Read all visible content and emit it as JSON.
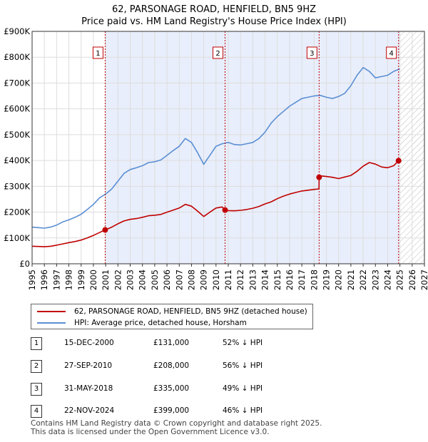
{
  "title_line1": "62, PARSONAGE ROAD, HENFIELD, BN5 9HZ",
  "title_line2": "Price paid vs. HM Land Registry's House Price Index (HPI)",
  "legend": {
    "property": "62, PARSONAGE ROAD, HENFIELD, BN5 9HZ (detached house)",
    "hpi": "HPI: Average price, detached house, Horsham"
  },
  "sales": [
    {
      "num": "1",
      "date": "15-DEC-2000",
      "price": "£131,000",
      "hpi": "52% ↓ HPI"
    },
    {
      "num": "2",
      "date": "27-SEP-2010",
      "price": "£208,000",
      "hpi": "56% ↓ HPI"
    },
    {
      "num": "3",
      "date": "31-MAY-2018",
      "price": "£335,000",
      "hpi": "49% ↓ HPI"
    },
    {
      "num": "4",
      "date": "22-NOV-2024",
      "price": "£399,000",
      "hpi": "46% ↓ HPI"
    }
  ],
  "footer_line1": "Contains HM Land Registry data © Crown copyright and database right 2025.",
  "footer_line2": "This data is licensed under the Open Government Licence v3.0.",
  "colors": {
    "property": "#c00000",
    "hpi": "#5b8fd4",
    "shade": "#e8eefb",
    "marker": "#c00000"
  },
  "chart_data": {
    "type": "line",
    "xlim": [
      1995,
      2027
    ],
    "ylim": [
      0,
      900000
    ],
    "x_ticks": [
      1995,
      1996,
      1997,
      1998,
      1999,
      2000,
      2001,
      2002,
      2003,
      2004,
      2005,
      2006,
      2007,
      2008,
      2009,
      2010,
      2011,
      2012,
      2013,
      2014,
      2015,
      2016,
      2017,
      2018,
      2019,
      2020,
      2021,
      2022,
      2023,
      2024,
      2025,
      2026,
      2027
    ],
    "y_ticks": [
      {
        "value": 0,
        "label": "£0"
      },
      {
        "value": 100000,
        "label": "£100K"
      },
      {
        "value": 200000,
        "label": "£200K"
      },
      {
        "value": 300000,
        "label": "£300K"
      },
      {
        "value": 400000,
        "label": "£400K"
      },
      {
        "value": 500000,
        "label": "£500K"
      },
      {
        "value": 600000,
        "label": "£600K"
      },
      {
        "value": 700000,
        "label": "£700K"
      },
      {
        "value": 800000,
        "label": "£800K"
      },
      {
        "value": 900000,
        "label": "£900K"
      }
    ],
    "shaded_from": 2000.96,
    "hatched_from": 2025.0,
    "sale_markers": [
      {
        "label": "1",
        "x": 2000.96,
        "y": 131000
      },
      {
        "label": "2",
        "x": 2010.74,
        "y": 208000
      },
      {
        "label": "3",
        "x": 2018.41,
        "y": 335000
      },
      {
        "label": "4",
        "x": 2024.89,
        "y": 399000
      }
    ],
    "series": [
      {
        "name": "HPI: Average price, detached house, Horsham",
        "x": [
          1995,
          1995.5,
          1996,
          1996.5,
          1997,
          1997.5,
          1998,
          1998.5,
          1999,
          1999.5,
          2000,
          2000.5,
          2001,
          2001.5,
          2002,
          2002.5,
          2003,
          2003.5,
          2004,
          2004.5,
          2005,
          2005.5,
          2006,
          2006.5,
          2007,
          2007.5,
          2008,
          2008.5,
          2009,
          2009.5,
          2010,
          2010.5,
          2011,
          2011.5,
          2012,
          2012.5,
          2013,
          2013.5,
          2014,
          2014.5,
          2015,
          2015.5,
          2016,
          2016.5,
          2017,
          2017.5,
          2018,
          2018.5,
          2019,
          2019.5,
          2020,
          2020.5,
          2021,
          2021.5,
          2022,
          2022.5,
          2023,
          2023.5,
          2024,
          2024.5,
          2025
        ],
        "values": [
          142000,
          140000,
          138000,
          142000,
          150000,
          162000,
          170000,
          180000,
          192000,
          210000,
          230000,
          255000,
          270000,
          290000,
          320000,
          350000,
          365000,
          372000,
          380000,
          392000,
          395000,
          402000,
          420000,
          438000,
          455000,
          485000,
          470000,
          430000,
          385000,
          420000,
          455000,
          465000,
          470000,
          462000,
          460000,
          465000,
          470000,
          485000,
          510000,
          545000,
          570000,
          590000,
          610000,
          625000,
          640000,
          645000,
          650000,
          652000,
          645000,
          640000,
          648000,
          660000,
          690000,
          730000,
          760000,
          745000,
          720000,
          725000,
          730000,
          745000,
          755000
        ]
      },
      {
        "name": "62, PARSONAGE ROAD, HENFIELD, BN5 9HZ (detached house)",
        "x": [
          1995,
          1995.5,
          1996,
          1996.5,
          1997,
          1997.5,
          1998,
          1998.5,
          1999,
          1999.5,
          2000,
          2000.5,
          2000.96,
          2001.5,
          2002,
          2002.5,
          2003,
          2003.5,
          2004,
          2004.5,
          2005,
          2005.5,
          2006,
          2006.5,
          2007,
          2007.5,
          2008,
          2008.5,
          2009,
          2009.5,
          2010,
          2010.5,
          2010.74,
          2011,
          2011.5,
          2012,
          2012.5,
          2013,
          2013.5,
          2014,
          2014.5,
          2015,
          2015.5,
          2016,
          2016.5,
          2017,
          2017.5,
          2018,
          2018.4,
          2018.41,
          2018.6,
          2019,
          2019.5,
          2020,
          2020.5,
          2021,
          2021.5,
          2022,
          2022.5,
          2023,
          2023.5,
          2024,
          2024.5,
          2024.89
        ],
        "values": [
          68000,
          67000,
          66000,
          68000,
          72000,
          77000,
          82000,
          86000,
          92000,
          100000,
          110000,
          121000,
          131000,
          142000,
          155000,
          166000,
          172000,
          175000,
          180000,
          186000,
          188000,
          191000,
          200000,
          208000,
          216000,
          230000,
          223000,
          204000,
          183000,
          200000,
          216000,
          220000,
          208000,
          206000,
          205000,
          207000,
          210000,
          215000,
          222000,
          232000,
          240000,
          252000,
          262000,
          270000,
          276000,
          282000,
          285000,
          288000,
          290000,
          335000,
          340000,
          338000,
          335000,
          330000,
          336000,
          342000,
          358000,
          378000,
          392000,
          386000,
          375000,
          372000,
          380000,
          399000
        ]
      }
    ]
  }
}
